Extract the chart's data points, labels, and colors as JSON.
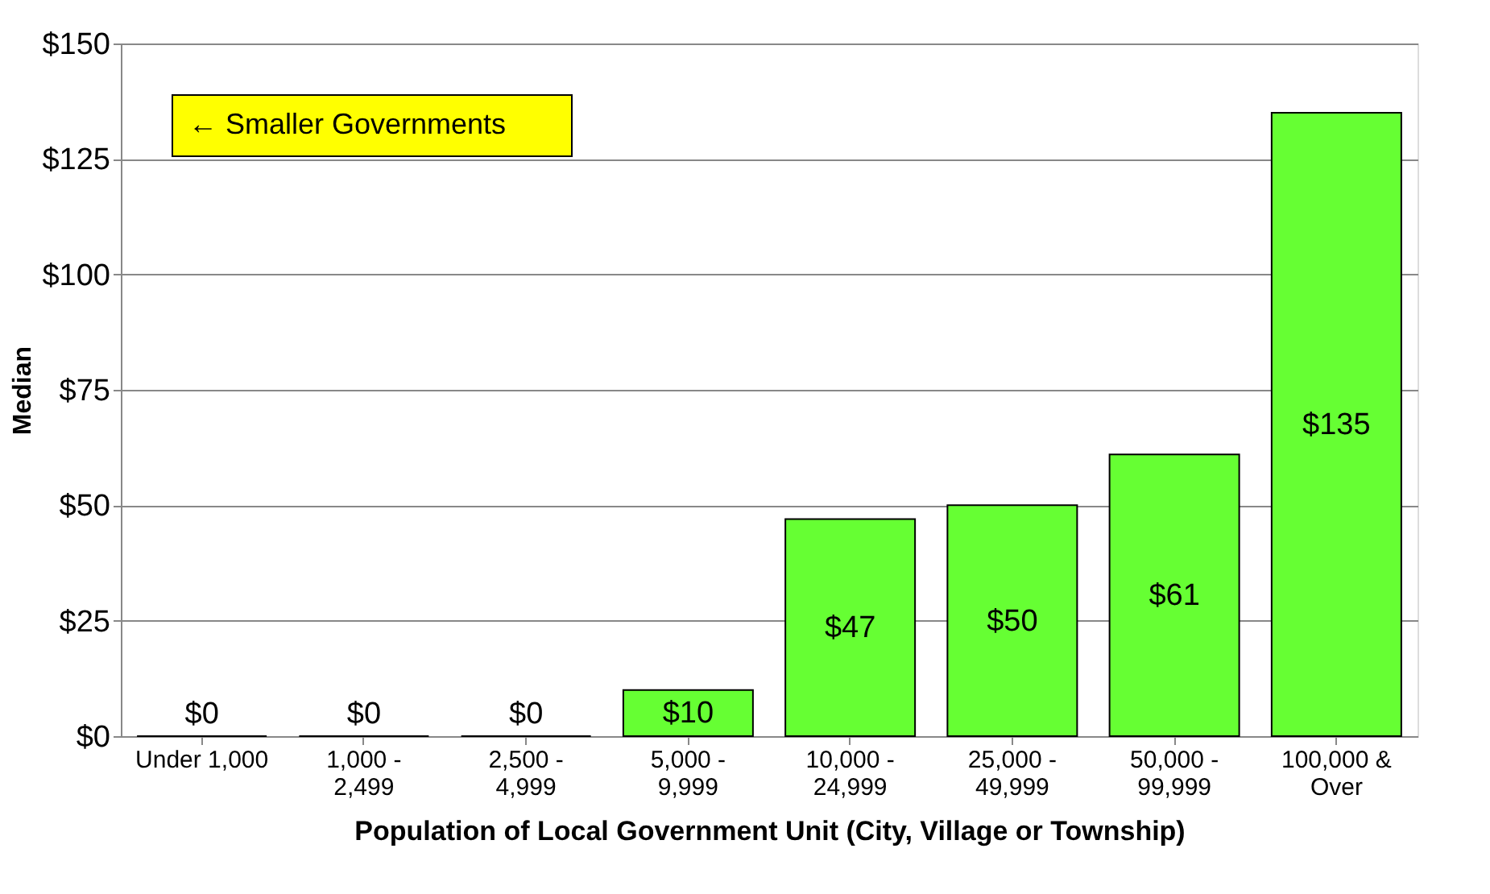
{
  "chart_data": {
    "type": "bar",
    "xlabel": "Population of Local Government Unit (City, Village or Township)",
    "ylabel": "Median",
    "categories": [
      "Under 1,000",
      "1,000 -\n2,499",
      "2,500 -\n4,999",
      "5,000 -\n9,999",
      "10,000 -\n24,999",
      "25,000 -\n49,999",
      "50,000 -\n99,999",
      "100,000 &\nOver"
    ],
    "values": [
      0,
      0,
      0,
      10,
      47,
      50,
      61,
      135
    ],
    "value_labels": [
      "$0",
      "$0",
      "$0",
      "$10",
      "$47",
      "$50",
      "$61",
      "$135"
    ],
    "color": "#66ff33",
    "ylim": [
      0,
      150
    ],
    "yticks": [
      {
        "value": 0,
        "label": "$0"
      },
      {
        "value": 25,
        "label": "$25"
      },
      {
        "value": 50,
        "label": "$50"
      },
      {
        "value": 75,
        "label": "$75"
      },
      {
        "value": 100,
        "label": "$100"
      },
      {
        "value": 125,
        "label": "$125"
      },
      {
        "value": 150,
        "label": "$150"
      }
    ],
    "grid": "y",
    "annotations": [
      "← Smaller Governments"
    ]
  }
}
